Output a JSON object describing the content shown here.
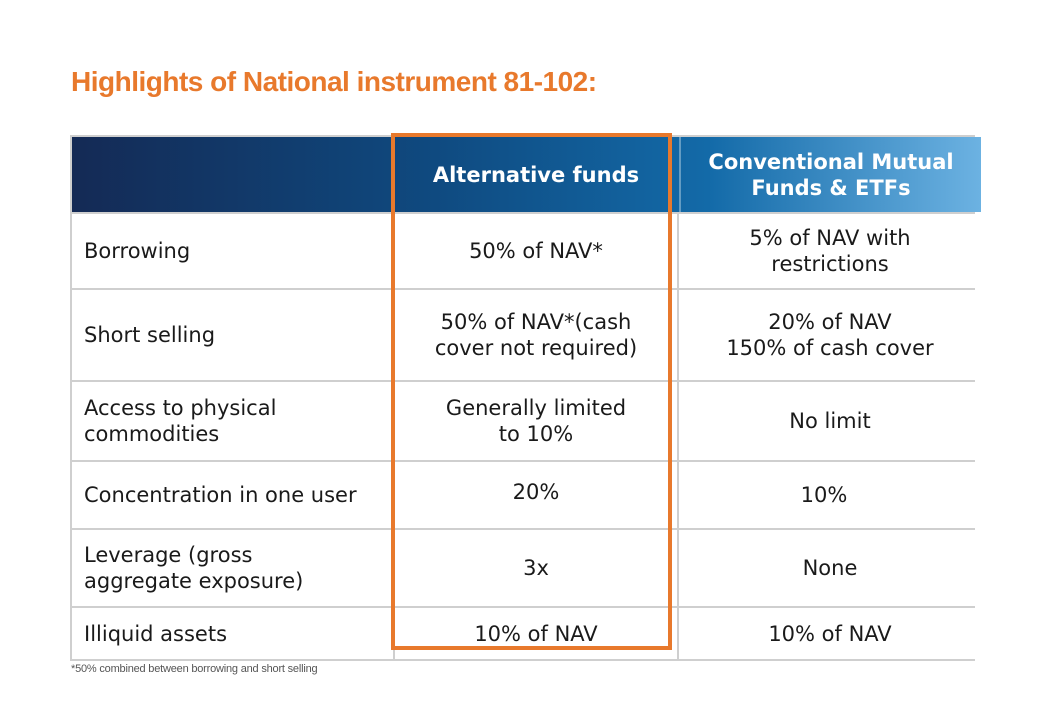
{
  "title": "Highlights of National instrument 81-102:",
  "table": {
    "headers": {
      "alternative": "Alternative funds",
      "conventional_line1": "Conventional Mutual",
      "conventional_line2": "Funds & ETFs"
    },
    "rows": [
      {
        "label_line1": "Borrowing",
        "label_line2": "",
        "alt_line1": "50% of NAV*",
        "alt_line2": "",
        "conv_line1": "5% of NAV with",
        "conv_line2": "restrictions"
      },
      {
        "label_line1": "Short selling",
        "label_line2": "",
        "alt_line1": "50% of NAV*(cash",
        "alt_line2": "cover not required)",
        "conv_line1": "20% of NAV",
        "conv_line2": "150% of cash cover"
      },
      {
        "label_line1": "Access to physical",
        "label_line2": "commodities",
        "alt_line1": "Generally limited",
        "alt_line2": "to 10%",
        "conv_line1": "No limit",
        "conv_line2": ""
      },
      {
        "label_line1": "Concentration in one user",
        "label_line2": "",
        "alt_line1": "20%",
        "alt_line2": "",
        "conv_line1": "10%",
        "conv_line2": ""
      },
      {
        "label_line1": "Leverage (gross",
        "label_line2": "aggregate exposure)",
        "alt_line1": "3x",
        "alt_line2": "",
        "conv_line1": "None",
        "conv_line2": ""
      },
      {
        "label_line1": "Illiquid assets",
        "label_line2": "",
        "alt_line1": "10% of NAV",
        "alt_line2": "",
        "conv_line1": "10% of NAV",
        "conv_line2": ""
      }
    ]
  },
  "footnote": "*50% combined between borrowing and short selling",
  "colors": {
    "accent": "#e8792c",
    "header_start": "#142a55",
    "header_end": "#6cb2e2"
  }
}
